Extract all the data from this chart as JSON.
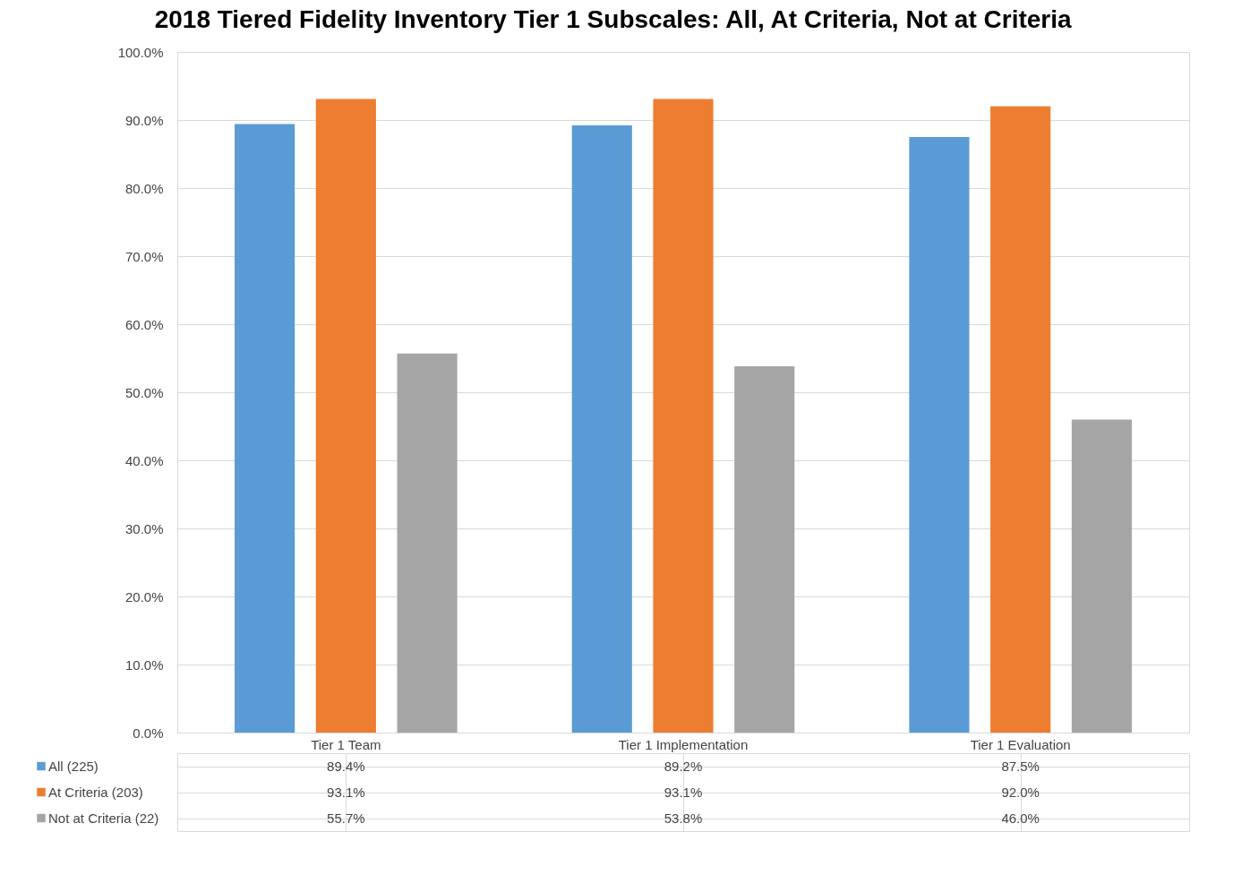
{
  "chart_data": {
    "type": "bar",
    "title": "2018 Tiered Fidelity Inventory Tier 1 Subscales: All, At Criteria, Not at Criteria",
    "categories": [
      "Tier 1 Team",
      "Tier 1 Implementation",
      "Tier 1 Evaluation"
    ],
    "series": [
      {
        "name": "All (225)",
        "color": "#5b9bd5",
        "values": [
          89.4,
          89.2,
          87.5
        ],
        "value_labels": [
          "89.4%",
          "89.2%",
          "87.5%"
        ]
      },
      {
        "name": "At Criteria (203)",
        "color": "#ed7d31",
        "values": [
          93.1,
          93.1,
          92.0
        ],
        "value_labels": [
          "93.1%",
          "93.1%",
          "92.0%"
        ]
      },
      {
        "name": "Not at Criteria (22)",
        "color": "#a5a5a5",
        "values": [
          55.7,
          53.8,
          46.0
        ],
        "value_labels": [
          "55.7%",
          "53.8%",
          "46.0%"
        ]
      }
    ],
    "ylim": [
      0,
      100
    ],
    "yticks": [
      {
        "value": 0,
        "label": "0.0%"
      },
      {
        "value": 10,
        "label": "10.0%"
      },
      {
        "value": 20,
        "label": "20.0%"
      },
      {
        "value": 30,
        "label": "30.0%"
      },
      {
        "value": 40,
        "label": "40.0%"
      },
      {
        "value": 50,
        "label": "50.0%"
      },
      {
        "value": 60,
        "label": "60.0%"
      },
      {
        "value": 70,
        "label": "70.0%"
      },
      {
        "value": 80,
        "label": "80.0%"
      },
      {
        "value": 90,
        "label": "90.0%"
      },
      {
        "value": 100,
        "label": "100.0%"
      }
    ],
    "grid": "y",
    "legend": "bottom left"
  }
}
